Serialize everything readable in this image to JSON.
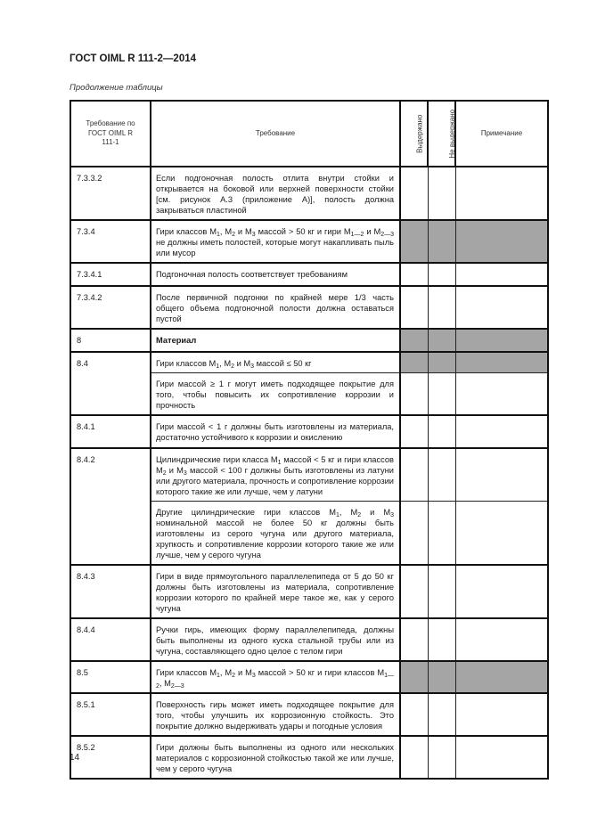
{
  "header": {
    "doc_title": "ГОСТ OIML R 111-2—2014",
    "caption": "Продолжение таблицы"
  },
  "table": {
    "columns": {
      "ref": "Требование по ГОСТ OIML R 111-1",
      "requirement": "Требование",
      "passed": "Выдержано",
      "failed": "Не выдержано",
      "note": "Примечание"
    },
    "rows": [
      {
        "ref": "7.3.3.2",
        "text": [
          {
            "t": "Если подгоночная полость отлита внутри стойки и открывается на боковой или верхней поверхности стойки [см. рисунок А.3 (приложение А)], полость должна закрываться пластиной"
          }
        ],
        "gray": false
      },
      {
        "ref": "7.3.4",
        "text": [
          {
            "t": "Гири классов M"
          },
          {
            "s": "1"
          },
          {
            "t": ", M"
          },
          {
            "s": "2"
          },
          {
            "t": " и M"
          },
          {
            "s": "3"
          },
          {
            "t": " массой > 50 кг и гири M"
          },
          {
            "s": "1—2"
          },
          {
            "t": " и M"
          },
          {
            "s": "2—3"
          },
          {
            "t": " не должны иметь полостей, которые могут накапливать пыль или мусор"
          }
        ],
        "gray": true
      },
      {
        "ref": "7.3.4.1",
        "text": [
          {
            "t": "Подгоночная полость соответствует требованиям"
          }
        ],
        "gray": false
      },
      {
        "ref": "7.3.4.2",
        "text": [
          {
            "t": "После первичной подгонки по крайней мере 1/3 часть общего объема подгоночной полости должна оставаться пустой"
          }
        ],
        "gray": false
      },
      {
        "ref": "8",
        "text": [
          {
            "t": "Материал"
          }
        ],
        "bold": true,
        "gray": true
      },
      {
        "ref": "8.4",
        "text": [
          {
            "t": "Гири классов M"
          },
          {
            "s": "1"
          },
          {
            "t": ", M"
          },
          {
            "s": "2"
          },
          {
            "t": " и M"
          },
          {
            "s": "3"
          },
          {
            "t": " массой ≤ 50 кг"
          }
        ],
        "gray": true,
        "span": 2
      },
      {
        "text": [
          {
            "t": "Гири массой ≥ 1 г могут иметь подходящее покрытие для того, чтобы повысить их сопротивление коррозии и прочность"
          }
        ],
        "gray": false,
        "cont": true
      },
      {
        "ref": "8.4.1",
        "text": [
          {
            "t": "Гири массой < 1 г должны быть изготовлены из материала, достаточно устойчивого к коррозии и окислению"
          }
        ],
        "gray": false
      },
      {
        "ref": "8.4.2",
        "text": [
          {
            "t": "Цилиндрические гири класса M"
          },
          {
            "s": "1"
          },
          {
            "t": " массой < 5 кг и гири классов M"
          },
          {
            "s": "2"
          },
          {
            "t": " и M"
          },
          {
            "s": "3"
          },
          {
            "t": " массой < 100 г должны быть изготовлены из латуни или другого материала, прочность и сопротивление коррозии которого такие же или лучше, чем у латуни"
          }
        ],
        "gray": false,
        "span": 2
      },
      {
        "text": [
          {
            "t": "Другие цилиндрические гири классов M"
          },
          {
            "s": "1"
          },
          {
            "t": ", M"
          },
          {
            "s": "2"
          },
          {
            "t": " и M"
          },
          {
            "s": "3"
          },
          {
            "t": " номинальной массой не более 50 кг должны быть изготовлены из серого чугуна или другого материала, хрупкость и сопротивление коррозии которого такие же или лучше, чем у серого чугуна"
          }
        ],
        "gray": false,
        "cont": true
      },
      {
        "ref": "8.4.3",
        "text": [
          {
            "t": "Гири в виде прямоугольного параллелепипеда от 5 до 50 кг должны быть изготовлены из материала, сопротивление коррозии которого по крайней мере такое же, как у серого чугуна"
          }
        ],
        "gray": false
      },
      {
        "ref": "8.4.4",
        "text": [
          {
            "t": "Ручки гирь, имеющих форму параллелепипеда, должны быть выполнены из одного куска стальной трубы или из чугуна, составляющего одно целое с телом гири"
          }
        ],
        "gray": false
      },
      {
        "ref": "8.5",
        "text": [
          {
            "t": "Гири классов M"
          },
          {
            "s": "1"
          },
          {
            "t": ", M"
          },
          {
            "s": "2"
          },
          {
            "t": " и M"
          },
          {
            "s": "3"
          },
          {
            "t": " массой > 50 кг и гири классов M"
          },
          {
            "s": "1—2"
          },
          {
            "t": ", M"
          },
          {
            "s": "2—3"
          }
        ],
        "gray": true
      },
      {
        "ref": "8.5.1",
        "text": [
          {
            "t": "Поверхность гирь может иметь подходящее покрытие для того, чтобы улучшить их коррозионную стойкость. Это покрытие должно выдерживать удары и погодные условия"
          }
        ],
        "gray": false
      },
      {
        "ref": "8.5.2",
        "text": [
          {
            "t": "Гири должны быть выполнены из одного или нескольких материалов с коррозионной стойкостью такой же или лучше, чем у серого чугуна"
          }
        ],
        "gray": false
      }
    ]
  },
  "footer": {
    "page_number": "14"
  },
  "colors": {
    "shaded_cell": "#a5a5a5",
    "border": "#111111"
  }
}
